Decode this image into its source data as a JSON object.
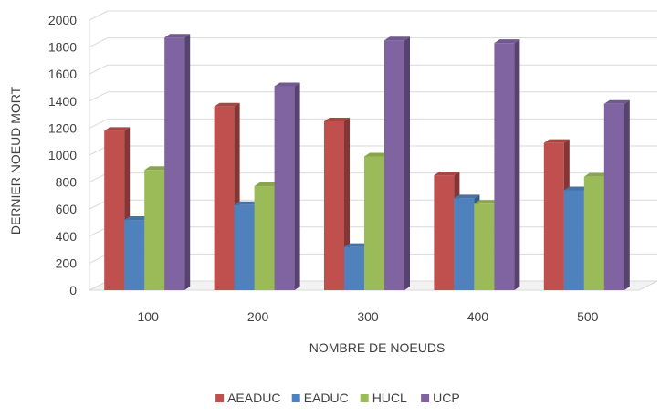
{
  "chart_data": {
    "type": "bar",
    "title": "",
    "xlabel": "NOMBRE DE NOEUDS",
    "ylabel": "DERNIER NOEUD MORT",
    "categories": [
      "100",
      "200",
      "300",
      "400",
      "500"
    ],
    "ylim": [
      0,
      2000
    ],
    "yticks": [
      0,
      200,
      400,
      600,
      800,
      1000,
      1200,
      1400,
      1600,
      1800,
      2000
    ],
    "grid": true,
    "legend_position": "bottom",
    "style": "3d-clustered-column",
    "series": [
      {
        "name": "AEADUC",
        "color": "#c0504d",
        "values": [
          1180,
          1360,
          1250,
          850,
          1090
        ]
      },
      {
        "name": "EADUC",
        "color": "#4f81bd",
        "values": [
          520,
          630,
          320,
          680,
          740
        ]
      },
      {
        "name": "HUCL",
        "color": "#9bbb59",
        "values": [
          890,
          770,
          990,
          640,
          840
        ]
      },
      {
        "name": "UCP",
        "color": "#8064a2",
        "values": [
          1870,
          1510,
          1850,
          1830,
          1380
        ]
      }
    ]
  }
}
